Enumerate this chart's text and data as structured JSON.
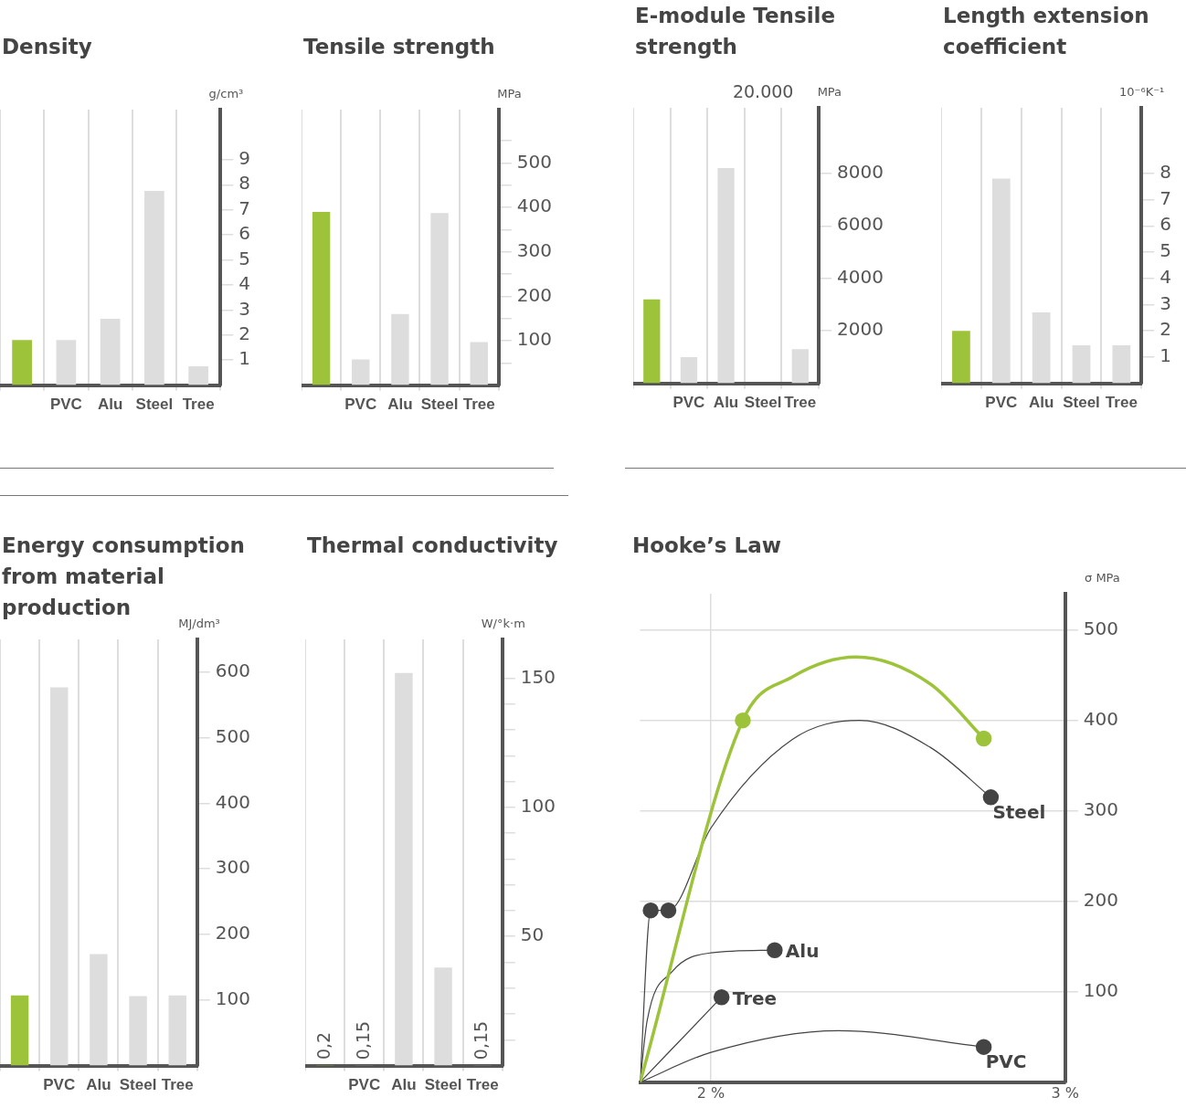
{
  "chart_data": [
    {
      "type": "bar",
      "title": "Density",
      "ylabel": "g/cm³",
      "categories": [
        null,
        "PVC",
        "Alu",
        "Steel",
        "Tree"
      ],
      "values": [
        1.8,
        1.8,
        2.65,
        7.75,
        0.75
      ],
      "colors": [
        "#9dc33b",
        "#dddddd",
        "#dddddd",
        "#dddddd",
        "#dddddd"
      ],
      "ylim": [
        0,
        11
      ],
      "yticks": [
        1,
        2,
        3,
        4,
        5,
        6,
        7,
        8,
        9
      ],
      "grid": "x",
      "legend": false
    },
    {
      "type": "bar",
      "title": "Tensile strength",
      "ylabel": "MPa",
      "categories": [
        null,
        "PVC",
        "Alu",
        "Steel",
        "Tree"
      ],
      "values": [
        390,
        58,
        160,
        387,
        97
      ],
      "colors": [
        "#9dc33b",
        "#dddddd",
        "#dddddd",
        "#dddddd",
        "#dddddd"
      ],
      "ylim": [
        0,
        620
      ],
      "yticks": [
        {
          "value": 50,
          "label": null
        },
        100,
        {
          "value": 150,
          "label": null
        },
        200,
        {
          "value": 250,
          "label": null
        },
        300,
        {
          "value": 350,
          "label": null
        },
        400,
        {
          "value": 450,
          "label": null
        },
        500,
        {
          "value": 550,
          "label": null
        }
      ],
      "grid": "x",
      "legend": false
    },
    {
      "type": "bar",
      "title": "E-module Tensile strength",
      "ylabel": "MPa",
      "categories": [
        null,
        "PVC",
        "Alu",
        "Steel",
        "Tree"
      ],
      "values": [
        3200,
        1000,
        8200,
        null,
        1300
      ],
      "value_labels": [
        null,
        null,
        null,
        "20.000",
        null
      ],
      "colors": [
        "#9dc33b",
        "#dddddd",
        "#dddddd",
        "#dddddd",
        "#dddddd"
      ],
      "ylim": [
        0,
        10500
      ],
      "yticks": [
        2000,
        4000,
        6000,
        8000
      ],
      "grid": "x",
      "legend": false
    },
    {
      "type": "bar",
      "title": "Length extension coefficient",
      "ylabel": "10⁻⁶K⁻¹",
      "categories": [
        null,
        "PVC",
        "Alu",
        "Steel",
        "Tree"
      ],
      "values": [
        2.0,
        7.8,
        2.7,
        1.45,
        1.45
      ],
      "colors": [
        "#9dc33b",
        "#dddddd",
        "#dddddd",
        "#dddddd",
        "#dddddd"
      ],
      "ylim": [
        0,
        10.5
      ],
      "yticks": [
        1,
        2,
        3,
        4,
        5,
        6,
        7,
        8
      ],
      "grid": "x",
      "legend": false
    },
    {
      "type": "bar",
      "title": "Energy consumption from material production",
      "ylabel": "MJ/dm³",
      "categories": [
        null,
        "PVC",
        "Alu",
        "Steel",
        "Tree"
      ],
      "values": [
        107,
        577,
        170,
        106,
        107
      ],
      "colors": [
        "#9dc33b",
        "#dddddd",
        "#dddddd",
        "#dddddd",
        "#dddddd"
      ],
      "ylim": [
        0,
        650
      ],
      "yticks": [
        100,
        200,
        300,
        400,
        500,
        600
      ],
      "grid": "x",
      "legend": false
    },
    {
      "type": "bar",
      "title": "Thermal conductivity",
      "ylabel": "W/°k·m",
      "categories": [
        null,
        "PVC",
        "Alu",
        "Steel",
        "Tree"
      ],
      "values": [
        0.2,
        0.15,
        152,
        38,
        0.15
      ],
      "value_labels": [
        "0,2",
        "0,15",
        null,
        null,
        "0,15"
      ],
      "colors": [
        "#9dc33b",
        "#dddddd",
        "#dddddd",
        "#dddddd",
        "#dddddd"
      ],
      "ylim": [
        0,
        165
      ],
      "yticks": [
        {
          "value": 10,
          "label": null
        },
        {
          "value": 20,
          "label": null
        },
        {
          "value": 30,
          "label": null
        },
        {
          "value": 40,
          "label": null
        },
        50,
        {
          "value": 60,
          "label": null
        },
        {
          "value": 70,
          "label": null
        },
        {
          "value": 80,
          "label": null
        },
        {
          "value": 90,
          "label": null
        },
        100,
        {
          "value": 110,
          "label": null
        },
        {
          "value": 120,
          "label": null
        },
        {
          "value": 130,
          "label": null
        },
        {
          "value": 140,
          "label": null
        },
        150
      ],
      "grid": "x",
      "legend": false
    },
    {
      "type": "line",
      "title": "Hooke’s Law",
      "ylabel": "σ MPa",
      "xlim": [
        1.8,
        3
      ],
      "xticks": [
        {
          "value": 2,
          "label": "2 %"
        },
        {
          "value": 3,
          "label": "3 %"
        }
      ],
      "ylim": [
        0,
        540
      ],
      "yticks": [
        100,
        200,
        300,
        400,
        500
      ],
      "grid": true,
      "legend": false,
      "series": [
        {
          "color": "#9dc33b",
          "x": [
            1.8,
            2.09,
            2.23,
            2.41,
            2.62,
            2.77
          ],
          "values": [
            0,
            400,
            448,
            470,
            440,
            380
          ],
          "marker": "none"
        },
        {
          "name": "Steel",
          "color": "#444444",
          "x": [
            1.8,
            1.83,
            1.88,
            2.0,
            2.23,
            2.42,
            2.62,
            2.79
          ],
          "values": [
            0,
            190,
            190,
            281,
            379,
            400,
            370,
            315
          ],
          "marker": "none"
        },
        {
          "name": "Alu",
          "color": "#444444",
          "x": [
            1.8,
            1.82,
            1.89,
            2.0,
            2.18
          ],
          "values": [
            0,
            68,
            122,
            143,
            146
          ],
          "marker": "none"
        },
        {
          "name": "Tree",
          "color": "#444444",
          "x": [
            1.8,
            2.03
          ],
          "values": [
            0,
            94
          ],
          "marker": "none"
        },
        {
          "name": "PVC",
          "color": "#444444",
          "x": [
            1.8,
            2.0,
            2.36,
            2.77
          ],
          "values": [
            0,
            33,
            57,
            39
          ],
          "marker": "none"
        },
        {
          "type": "scatter",
          "color": "#9dc33b",
          "x": [
            2.09,
            2.77
          ],
          "values": [
            400,
            380
          ],
          "marker": "circle"
        },
        {
          "type": "scatter",
          "color": "#444444",
          "x": [
            1.83,
            1.88,
            2.79,
            2.18,
            2.03,
            2.77
          ],
          "values": [
            190,
            190,
            315,
            146,
            94,
            39
          ],
          "marker": "circle"
        }
      ]
    }
  ]
}
